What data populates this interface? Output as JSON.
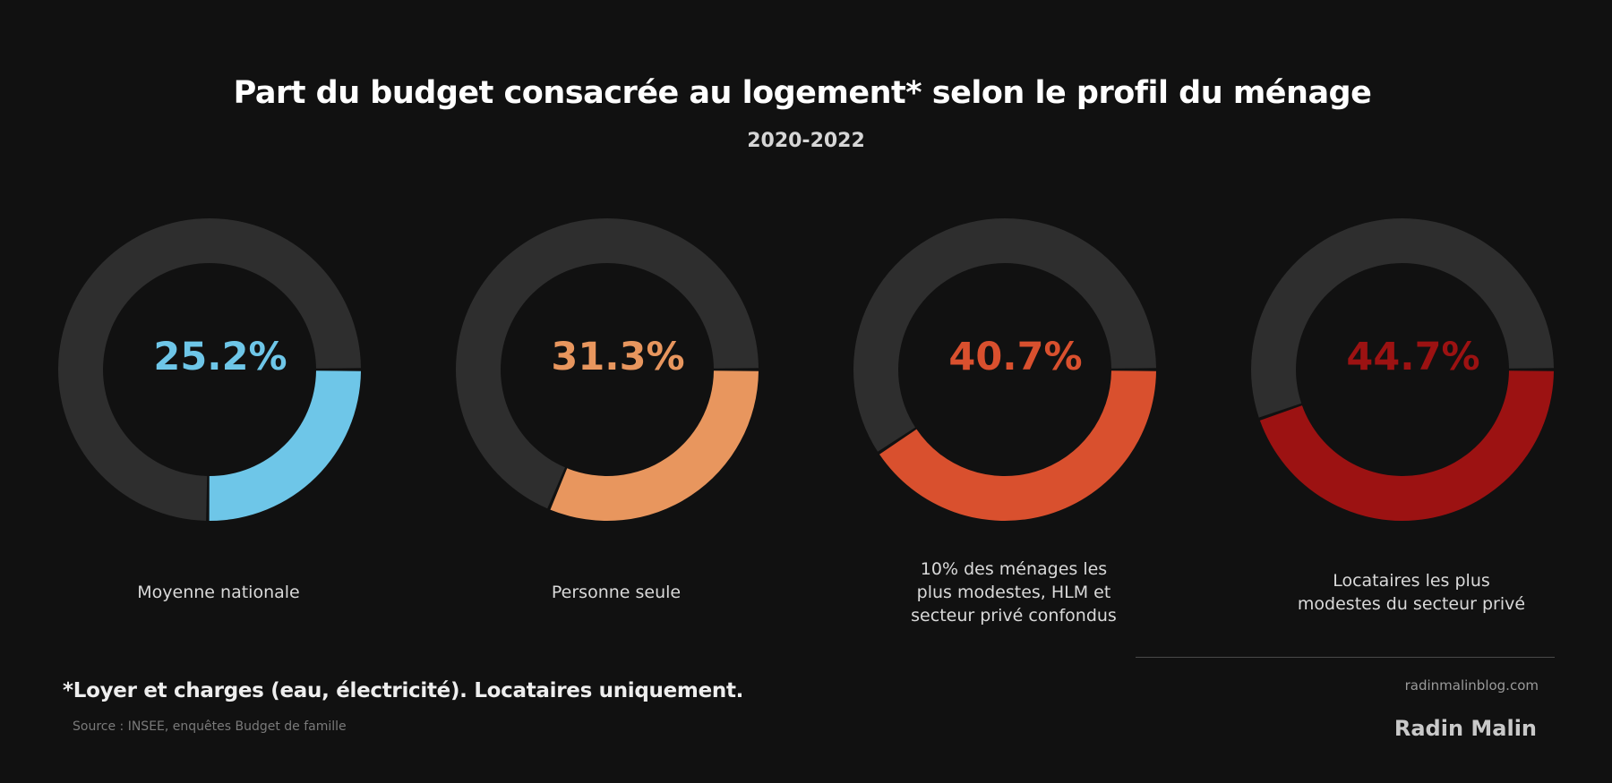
{
  "header": {
    "title": "Part du budget consacrée au logement* selon le profil du ménage",
    "subtitle": "2020-2022"
  },
  "chart_data": {
    "type": "pie",
    "variant": "donut",
    "title": "Part du budget consacrée au logement* selon le profil du ménage",
    "subtitle": "2020-2022",
    "unit": "%",
    "track_color": "#2e2e2e",
    "series": [
      {
        "name": "Moyenne nationale",
        "label_lines": [
          "Moyenne nationale"
        ],
        "value": 25.2,
        "value_label": "25.2%",
        "color": "#6ec6e8"
      },
      {
        "name": "Personne seule",
        "label_lines": [
          "Personne seule"
        ],
        "value": 31.3,
        "value_label": "31.3%",
        "color": "#e8965e"
      },
      {
        "name": "10% des ménages les plus modestes, HLM et secteur privé confondus",
        "label_lines": [
          "10% des ménages les",
          "plus modestes, HLM et",
          "secteur privé confondus"
        ],
        "value": 40.7,
        "value_label": "40.7%",
        "color": "#d9502e"
      },
      {
        "name": "Locataires les plus modestes du secteur privé",
        "label_lines": [
          "Locataires les plus",
          "modestes du secteur privé"
        ],
        "value": 44.7,
        "value_label": "44.7%",
        "color": "#9c1212"
      }
    ]
  },
  "footer": {
    "footnote": "*Loyer et charges (eau, électricité). Locataires uniquement.",
    "source": "Source : INSEE, enquêtes Budget de famille",
    "site": "radinmalinblog.com",
    "brand": "Radin Malin"
  }
}
